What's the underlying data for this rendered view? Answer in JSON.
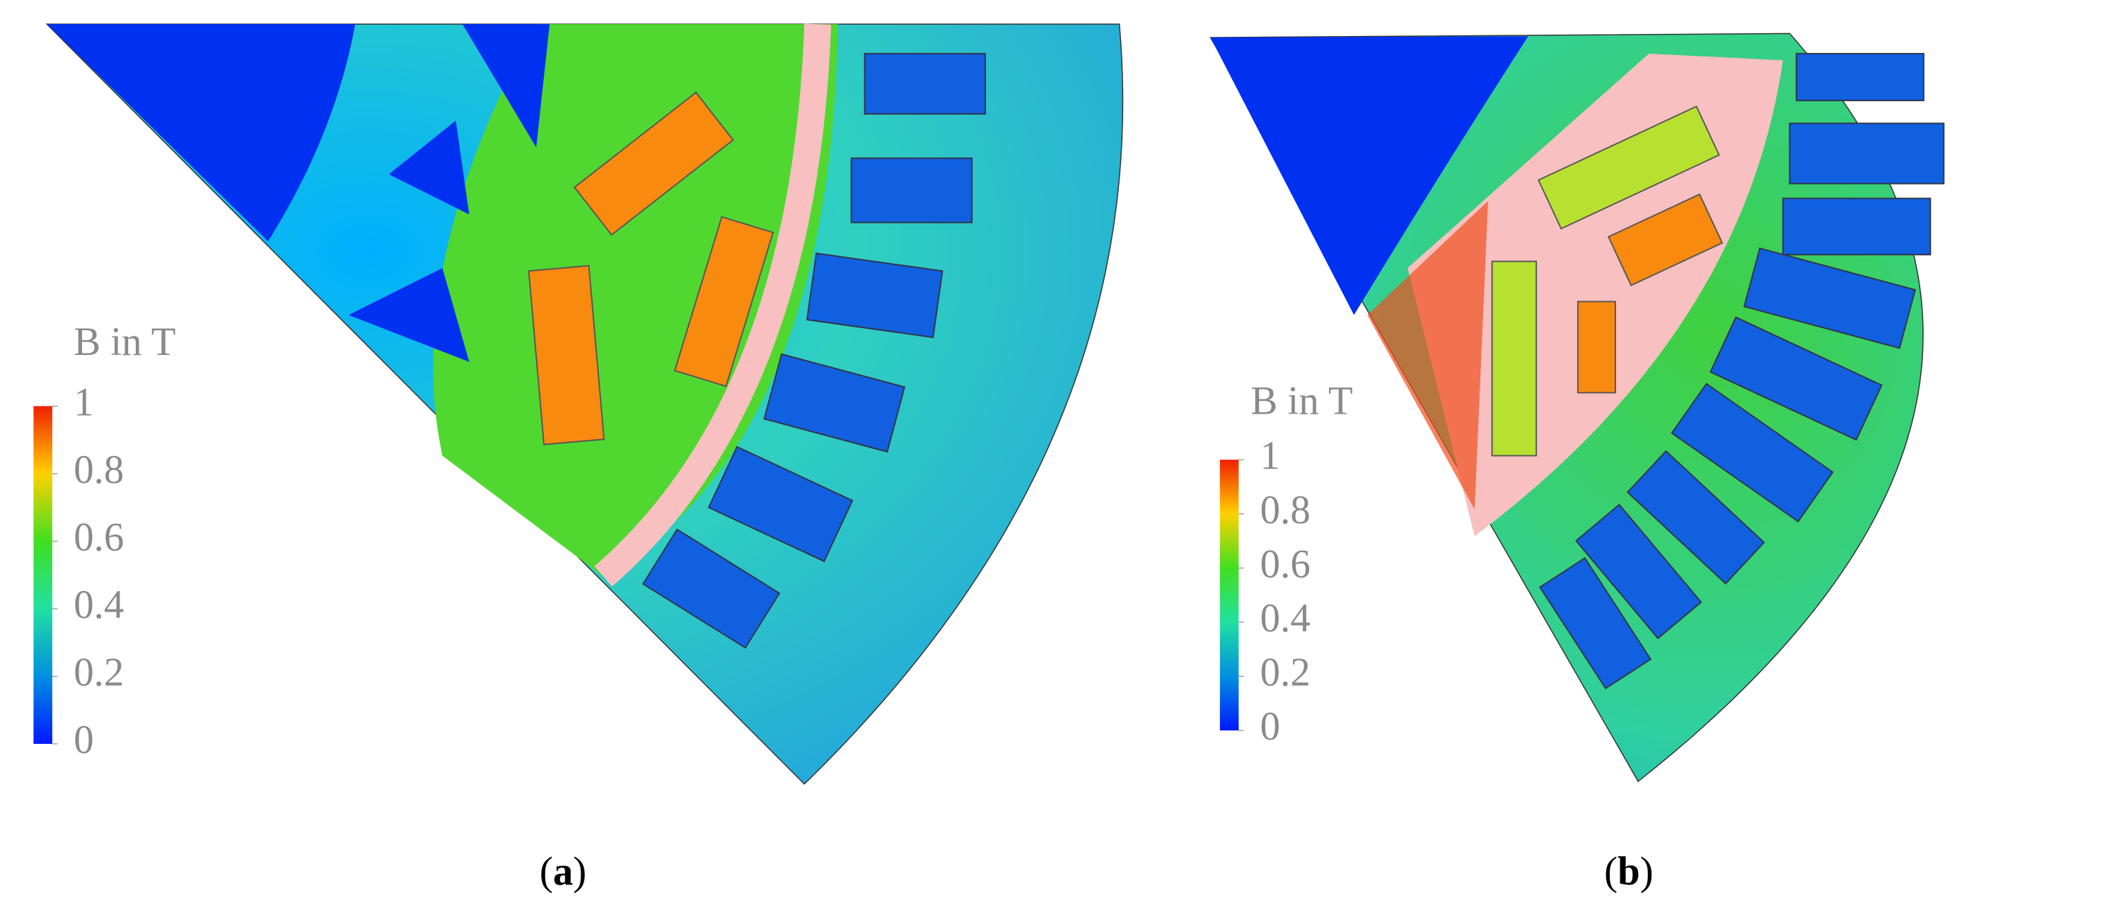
{
  "panels": [
    {
      "label": [
        "(",
        "a",
        ")"
      ],
      "colorbar": {
        "title": "B in T",
        "range": [
          0,
          1
        ],
        "ticks": [
          0,
          0.2,
          0.4,
          0.6,
          0.8,
          1
        ]
      }
    },
    {
      "label": [
        "(",
        "b",
        ")"
      ],
      "colorbar": {
        "title": "B in T",
        "range": [
          0,
          1
        ],
        "ticks": [
          0,
          0.2,
          0.4,
          0.6,
          0.8,
          1
        ]
      }
    }
  ]
}
